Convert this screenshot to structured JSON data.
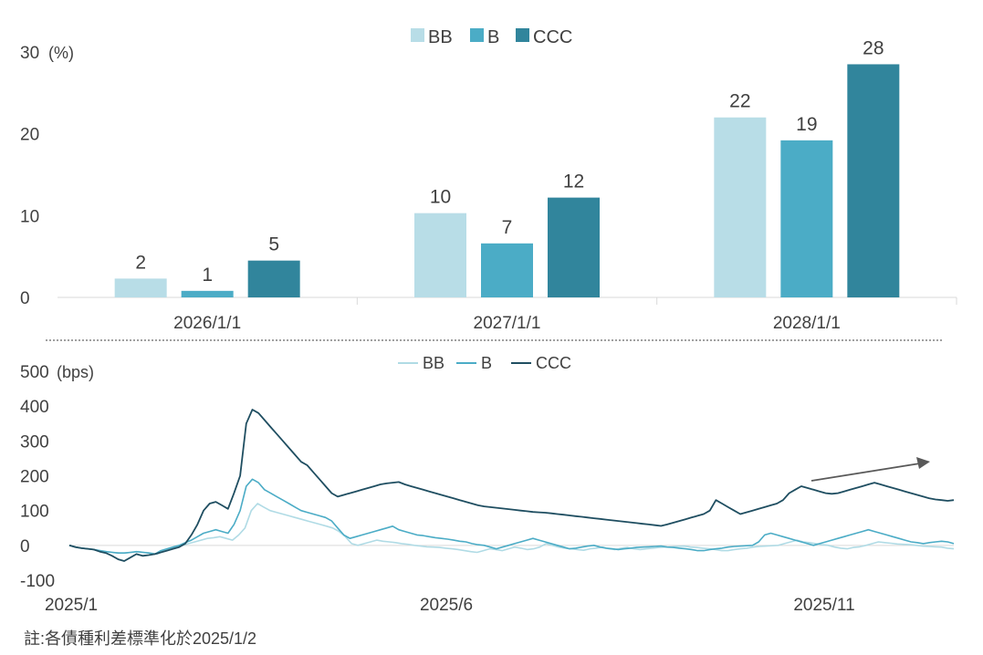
{
  "note": "註:各債種利差標準化於2025/1/2",
  "chart_data": [
    {
      "type": "bar",
      "unit_label": "(%)",
      "categories": [
        "2026/1/1",
        "2027/1/1",
        "2028/1/1"
      ],
      "series": [
        {
          "name": "BB",
          "values": [
            2,
            10,
            22
          ],
          "actual": [
            2.3,
            10.3,
            22.0
          ],
          "color": "#b8dde7"
        },
        {
          "name": "B",
          "values": [
            1,
            7,
            19
          ],
          "actual": [
            0.8,
            6.6,
            19.2
          ],
          "color": "#4bacc6"
        },
        {
          "name": "CCC",
          "values": [
            5,
            12,
            28
          ],
          "actual": [
            4.5,
            12.2,
            28.5
          ],
          "color": "#31859c"
        }
      ],
      "ylim": [
        0,
        30
      ],
      "yticks": [
        "0",
        "10",
        "20",
        "30"
      ]
    },
    {
      "type": "line",
      "unit_label": "(bps)",
      "xlabels": [
        "2025/1",
        "2025/6",
        "2025/11"
      ],
      "ylim": [
        -100,
        500
      ],
      "yticks": [
        "-100",
        "0",
        "100",
        "200",
        "300",
        "400",
        "500"
      ],
      "annotation": "upward-trend-arrow",
      "series": [
        {
          "name": "BB",
          "color": "#b0dbe5",
          "values": [
            0,
            -5,
            -8,
            -10,
            -12,
            -15,
            -18,
            -20,
            -22,
            -22,
            -20,
            -18,
            -20,
            -22,
            -25,
            -15,
            -10,
            -5,
            0,
            5,
            10,
            15,
            20,
            22,
            25,
            20,
            15,
            30,
            50,
            100,
            120,
            110,
            100,
            95,
            90,
            85,
            80,
            75,
            70,
            65,
            60,
            55,
            50,
            40,
            25,
            5,
            0,
            5,
            10,
            15,
            12,
            10,
            8,
            5,
            3,
            0,
            -2,
            -4,
            -5,
            -6,
            -8,
            -10,
            -12,
            -15,
            -18,
            -20,
            -15,
            -10,
            -12,
            -15,
            -10,
            -5,
            -8,
            -12,
            -10,
            -5,
            5,
            0,
            -5,
            -8,
            -10,
            -12,
            -14,
            -10,
            -8,
            -5,
            -10,
            -12,
            -8,
            -6,
            -10,
            -12,
            -10,
            -8,
            -6,
            -5,
            -4,
            -3,
            -2,
            -5,
            -6,
            -8,
            -10,
            -12,
            -15,
            -15,
            -12,
            -10,
            -8,
            -5,
            -3,
            -2,
            -1,
            0,
            5,
            10,
            15,
            10,
            8,
            5,
            2,
            0,
            -5,
            -8,
            -10,
            -6,
            -4,
            0,
            5,
            10,
            8,
            6,
            4,
            3,
            2,
            0,
            -2,
            -3,
            -4,
            -5,
            -8,
            -10
          ]
        },
        {
          "name": "B",
          "color": "#4bacc6",
          "values": [
            0,
            -5,
            -8,
            -10,
            -12,
            -15,
            -18,
            -20,
            -22,
            -22,
            -20,
            -18,
            -20,
            -22,
            -25,
            -15,
            -10,
            -5,
            0,
            8,
            15,
            25,
            35,
            40,
            45,
            40,
            35,
            60,
            100,
            170,
            190,
            180,
            160,
            150,
            140,
            130,
            120,
            110,
            100,
            95,
            90,
            85,
            80,
            70,
            50,
            30,
            20,
            25,
            30,
            35,
            40,
            45,
            50,
            55,
            45,
            40,
            35,
            30,
            28,
            25,
            22,
            20,
            18,
            15,
            12,
            10,
            5,
            2,
            0,
            -5,
            -10,
            -5,
            0,
            5,
            10,
            15,
            20,
            15,
            10,
            5,
            0,
            -5,
            -10,
            -8,
            -5,
            -2,
            0,
            -5,
            -8,
            -10,
            -12,
            -10,
            -8,
            -6,
            -5,
            -4,
            -3,
            -2,
            -5,
            -6,
            -8,
            -10,
            -12,
            -15,
            -15,
            -12,
            -10,
            -8,
            -5,
            -3,
            -2,
            -1,
            0,
            10,
            30,
            35,
            30,
            25,
            20,
            15,
            10,
            5,
            0,
            5,
            10,
            15,
            20,
            25,
            30,
            35,
            40,
            45,
            40,
            35,
            30,
            25,
            20,
            15,
            10,
            8,
            5,
            8,
            10,
            12,
            10,
            5
          ]
        },
        {
          "name": "CCC",
          "color": "#1f4e61",
          "values": [
            0,
            -5,
            -8,
            -10,
            -12,
            -18,
            -22,
            -30,
            -40,
            -45,
            -35,
            -25,
            -30,
            -28,
            -25,
            -20,
            -15,
            -10,
            -5,
            5,
            30,
            60,
            100,
            120,
            125,
            115,
            105,
            150,
            200,
            350,
            390,
            380,
            360,
            340,
            320,
            300,
            280,
            260,
            240,
            230,
            210,
            190,
            170,
            150,
            140,
            145,
            150,
            155,
            160,
            165,
            170,
            175,
            178,
            180,
            182,
            175,
            170,
            165,
            160,
            155,
            150,
            145,
            140,
            135,
            130,
            125,
            120,
            115,
            112,
            110,
            108,
            106,
            104,
            102,
            100,
            98,
            96,
            95,
            94,
            92,
            90,
            88,
            86,
            84,
            82,
            80,
            78,
            76,
            74,
            72,
            70,
            68,
            66,
            64,
            62,
            60,
            58,
            56,
            60,
            65,
            70,
            75,
            80,
            85,
            90,
            100,
            130,
            120,
            110,
            100,
            90,
            95,
            100,
            105,
            110,
            115,
            120,
            130,
            150,
            160,
            170,
            165,
            160,
            155,
            150,
            148,
            150,
            155,
            160,
            165,
            170,
            175,
            180,
            175,
            170,
            165,
            160,
            155,
            150,
            145,
            140,
            135,
            132,
            130,
            128,
            130
          ]
        }
      ]
    }
  ]
}
